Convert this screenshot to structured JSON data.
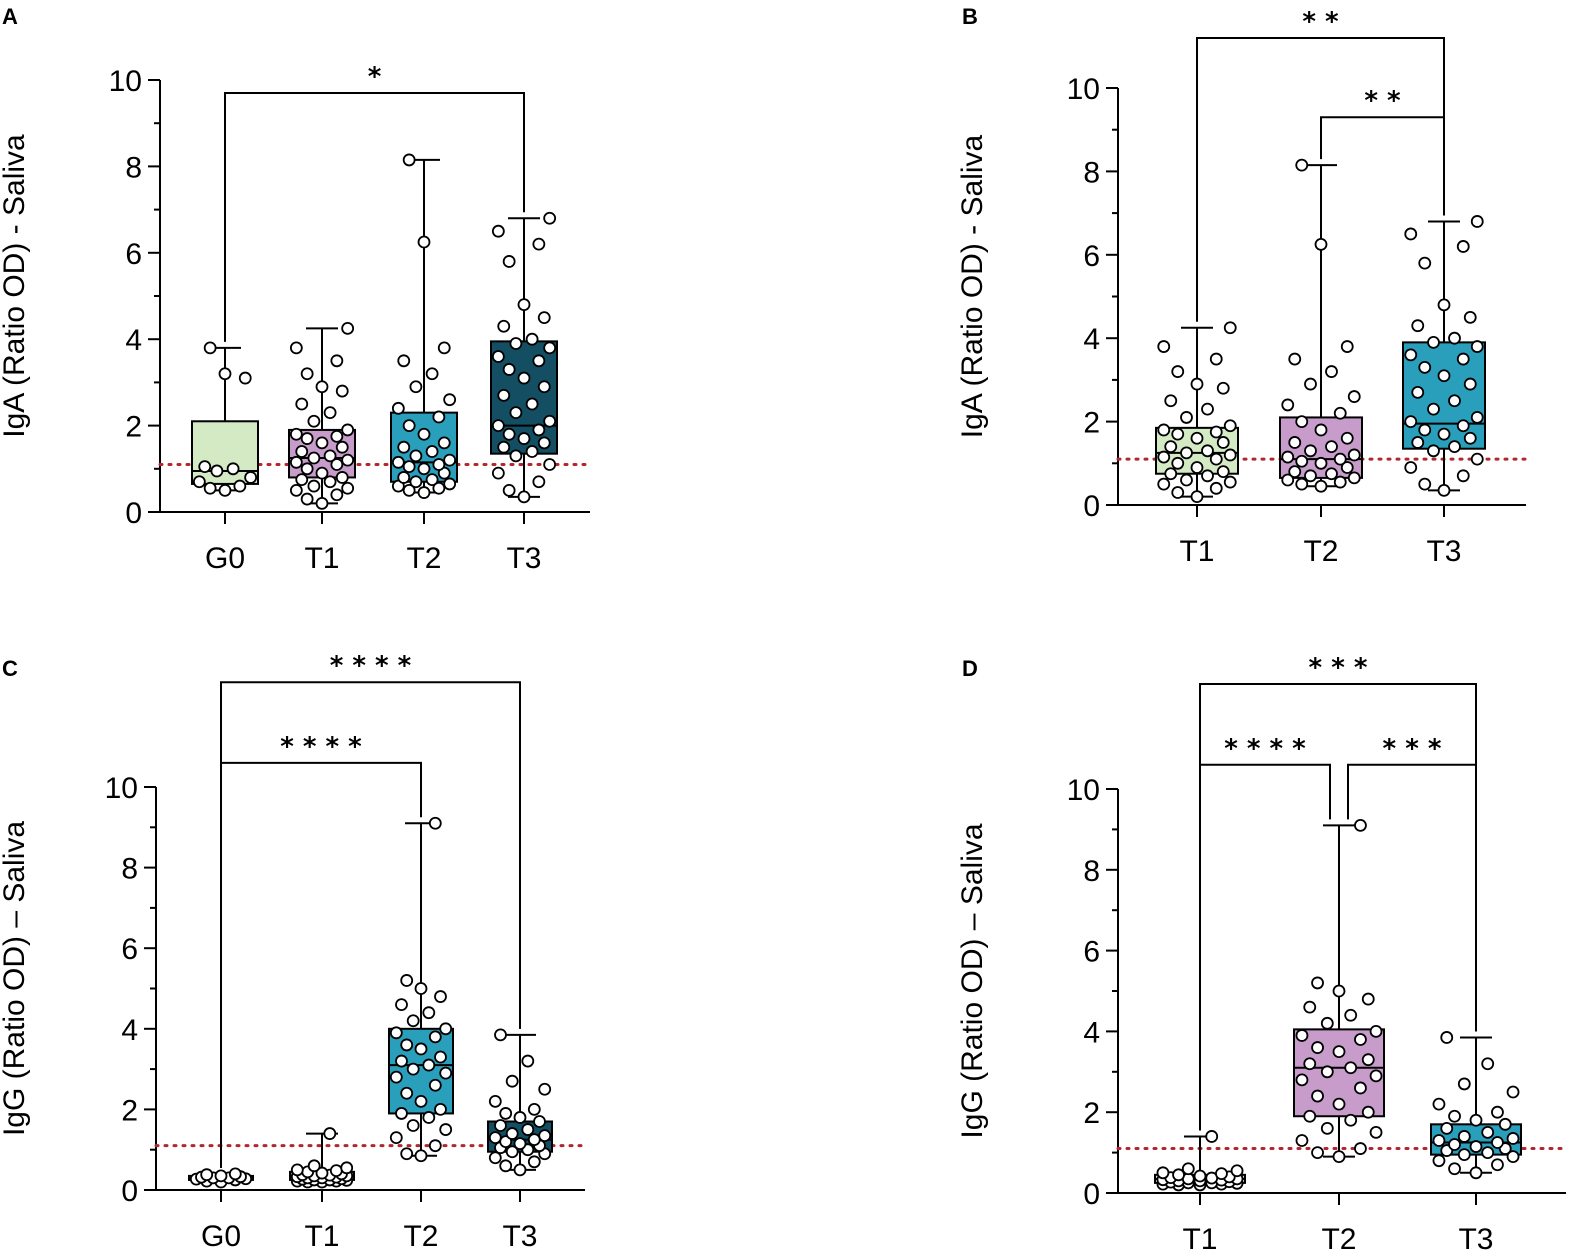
{
  "colors": {
    "light_green": "#d4eac4",
    "pink": "#c79ccb",
    "teal": "#2a9fbc",
    "dark_teal": "#134e63",
    "threshold": "#b3262e"
  },
  "chart_data": [
    {
      "panel": "A",
      "type": "box",
      "ylabel": "IgA (Ratio OD) - Saliva",
      "ylim": [
        0,
        10
      ],
      "yticks": [
        "0",
        "2",
        "4",
        "6",
        "8",
        "10"
      ],
      "threshold": 1.1,
      "categories": [
        "G0",
        "T1",
        "T2",
        "T3"
      ],
      "fills": [
        "light_green",
        "pink",
        "teal",
        "dark_teal"
      ],
      "boxes": [
        {
          "min": 0.5,
          "q1": 0.65,
          "median": 0.95,
          "q3": 2.1,
          "max": 3.8
        },
        {
          "min": 0.2,
          "q1": 0.8,
          "median": 1.25,
          "q3": 1.9,
          "max": 4.25
        },
        {
          "min": 0.45,
          "q1": 0.7,
          "median": 1.15,
          "q3": 2.3,
          "max": 8.15
        },
        {
          "min": 0.35,
          "q1": 1.35,
          "median": 2.0,
          "q3": 3.95,
          "max": 6.8
        }
      ],
      "points": [
        [
          0.5,
          0.55,
          0.6,
          0.7,
          0.8,
          0.95,
          1.0,
          1.05,
          3.1,
          3.2,
          3.8
        ],
        [
          0.2,
          0.3,
          0.4,
          0.5,
          0.55,
          0.6,
          0.7,
          0.75,
          0.8,
          0.9,
          1.0,
          1.1,
          1.15,
          1.2,
          1.25,
          1.3,
          1.4,
          1.5,
          1.6,
          1.7,
          1.75,
          1.8,
          1.9,
          2.1,
          2.3,
          2.5,
          2.8,
          2.9,
          3.2,
          3.5,
          3.8,
          4.25
        ],
        [
          0.45,
          0.5,
          0.55,
          0.6,
          0.65,
          0.7,
          0.75,
          0.8,
          0.9,
          1.0,
          1.05,
          1.1,
          1.15,
          1.2,
          1.3,
          1.4,
          1.5,
          1.6,
          1.8,
          2.0,
          2.2,
          2.4,
          2.6,
          2.9,
          3.2,
          3.5,
          3.8,
          6.25,
          8.15
        ],
        [
          0.35,
          0.5,
          0.7,
          0.9,
          1.1,
          1.3,
          1.4,
          1.5,
          1.6,
          1.7,
          1.8,
          1.9,
          2.0,
          2.1,
          2.3,
          2.5,
          2.7,
          2.9,
          3.1,
          3.3,
          3.5,
          3.6,
          3.8,
          3.9,
          4.0,
          4.3,
          4.5,
          4.8,
          5.8,
          6.2,
          6.5,
          6.8
        ]
      ],
      "brackets": [
        {
          "from": 0,
          "to": 3,
          "y": 9.7,
          "stars": "*"
        }
      ]
    },
    {
      "panel": "B",
      "type": "box",
      "ylabel": "IgA (Ratio OD) - Saliva",
      "ylim": [
        0,
        10
      ],
      "yticks": [
        "0",
        "2",
        "4",
        "6",
        "8",
        "10"
      ],
      "threshold": 1.1,
      "categories": [
        "T1",
        "T2",
        "T3"
      ],
      "fills": [
        "light_green",
        "pink",
        "teal"
      ],
      "boxes": [
        {
          "min": 0.2,
          "q1": 0.75,
          "median": 1.25,
          "q3": 1.85,
          "max": 4.25
        },
        {
          "min": 0.45,
          "q1": 0.65,
          "median": 1.1,
          "q3": 2.1,
          "max": 8.15
        },
        {
          "min": 0.35,
          "q1": 1.35,
          "median": 1.95,
          "q3": 3.9,
          "max": 6.8
        }
      ],
      "points": [
        [
          0.2,
          0.3,
          0.4,
          0.5,
          0.55,
          0.6,
          0.7,
          0.75,
          0.8,
          0.9,
          1.0,
          1.1,
          1.15,
          1.2,
          1.25,
          1.3,
          1.4,
          1.5,
          1.6,
          1.7,
          1.75,
          1.8,
          1.9,
          2.1,
          2.3,
          2.5,
          2.8,
          2.9,
          3.2,
          3.5,
          3.8,
          4.25
        ],
        [
          0.45,
          0.5,
          0.55,
          0.6,
          0.65,
          0.7,
          0.75,
          0.8,
          0.9,
          1.0,
          1.05,
          1.1,
          1.15,
          1.2,
          1.3,
          1.4,
          1.5,
          1.6,
          1.8,
          2.0,
          2.2,
          2.4,
          2.6,
          2.9,
          3.2,
          3.5,
          3.8,
          6.25,
          8.15
        ],
        [
          0.35,
          0.5,
          0.7,
          0.9,
          1.1,
          1.3,
          1.4,
          1.5,
          1.6,
          1.7,
          1.8,
          1.9,
          2.0,
          2.1,
          2.3,
          2.5,
          2.7,
          2.9,
          3.1,
          3.3,
          3.5,
          3.6,
          3.8,
          3.9,
          4.0,
          4.3,
          4.5,
          4.8,
          5.8,
          6.2,
          6.5,
          6.8
        ]
      ],
      "brackets": [
        {
          "from": 0,
          "to": 2,
          "y": 11.2,
          "stars": "* *"
        },
        {
          "from": 1,
          "to": 2,
          "y": 9.3,
          "stars": "* *"
        }
      ]
    },
    {
      "panel": "C",
      "type": "box",
      "ylabel": "IgG (Ratio OD) – Saliva",
      "ylim": [
        0,
        10
      ],
      "yticks": [
        "0",
        "2",
        "4",
        "6",
        "8",
        "10"
      ],
      "threshold": 1.1,
      "categories": [
        "G0",
        "T1",
        "T2",
        "T3"
      ],
      "fills": [
        "light_green",
        "pink",
        "teal",
        "dark_teal"
      ],
      "boxes": [
        {
          "min": 0.2,
          "q1": 0.25,
          "median": 0.3,
          "q3": 0.35,
          "max": 0.4
        },
        {
          "min": 0.2,
          "q1": 0.25,
          "median": 0.35,
          "q3": 0.45,
          "max": 1.4
        },
        {
          "min": 0.85,
          "q1": 1.9,
          "median": 3.1,
          "q3": 4.0,
          "max": 9.1
        },
        {
          "min": 0.5,
          "q1": 0.95,
          "median": 1.25,
          "q3": 1.7,
          "max": 3.85
        }
      ],
      "points": [
        [
          0.2,
          0.22,
          0.25,
          0.27,
          0.28,
          0.3,
          0.3,
          0.32,
          0.33,
          0.35,
          0.38,
          0.4
        ],
        [
          0.2,
          0.2,
          0.22,
          0.22,
          0.24,
          0.25,
          0.25,
          0.27,
          0.28,
          0.3,
          0.3,
          0.32,
          0.33,
          0.35,
          0.35,
          0.37,
          0.38,
          0.4,
          0.42,
          0.45,
          0.48,
          0.5,
          0.55,
          0.6,
          1.4
        ],
        [
          0.85,
          0.9,
          1.1,
          1.3,
          1.5,
          1.6,
          1.8,
          1.9,
          2.0,
          2.2,
          2.4,
          2.6,
          2.8,
          2.9,
          3.0,
          3.1,
          3.2,
          3.3,
          3.5,
          3.6,
          3.8,
          3.9,
          4.0,
          4.2,
          4.4,
          4.6,
          4.8,
          5.0,
          5.2,
          9.1
        ],
        [
          0.5,
          0.6,
          0.7,
          0.8,
          0.9,
          0.95,
          1.0,
          1.05,
          1.1,
          1.15,
          1.2,
          1.25,
          1.3,
          1.35,
          1.4,
          1.5,
          1.6,
          1.7,
          1.8,
          1.9,
          2.0,
          2.2,
          2.5,
          2.7,
          3.2,
          3.85
        ]
      ],
      "brackets": [
        {
          "from": 0,
          "to": 3,
          "y": 12.6,
          "stars": "* * * *"
        },
        {
          "from": 0,
          "to": 2,
          "y": 10.6,
          "stars": "* * * *"
        }
      ]
    },
    {
      "panel": "D",
      "type": "box",
      "ylabel": "IgG (Ratio OD) – Saliva",
      "ylim": [
        0,
        10
      ],
      "yticks": [
        "0",
        "2",
        "4",
        "6",
        "8",
        "10"
      ],
      "threshold": 1.1,
      "categories": [
        "T1",
        "T2",
        "T3"
      ],
      "fills": [
        "light_green",
        "pink",
        "teal"
      ],
      "boxes": [
        {
          "min": 0.2,
          "q1": 0.25,
          "median": 0.35,
          "q3": 0.45,
          "max": 1.4
        },
        {
          "min": 0.9,
          "q1": 1.9,
          "median": 3.1,
          "q3": 4.05,
          "max": 9.1
        },
        {
          "min": 0.5,
          "q1": 0.95,
          "median": 1.25,
          "q3": 1.7,
          "max": 3.85
        }
      ],
      "points": [
        [
          0.2,
          0.2,
          0.22,
          0.22,
          0.24,
          0.25,
          0.25,
          0.27,
          0.28,
          0.3,
          0.3,
          0.32,
          0.33,
          0.35,
          0.35,
          0.37,
          0.38,
          0.4,
          0.42,
          0.45,
          0.48,
          0.5,
          0.55,
          0.6,
          1.4
        ],
        [
          0.9,
          1.0,
          1.1,
          1.3,
          1.5,
          1.6,
          1.8,
          1.9,
          2.0,
          2.2,
          2.4,
          2.6,
          2.8,
          2.9,
          3.0,
          3.1,
          3.2,
          3.3,
          3.5,
          3.6,
          3.8,
          3.9,
          4.0,
          4.2,
          4.4,
          4.6,
          4.8,
          5.0,
          5.2,
          9.1
        ],
        [
          0.5,
          0.6,
          0.7,
          0.8,
          0.9,
          0.95,
          1.0,
          1.05,
          1.1,
          1.15,
          1.2,
          1.25,
          1.3,
          1.35,
          1.4,
          1.5,
          1.6,
          1.7,
          1.8,
          1.9,
          2.0,
          2.2,
          2.5,
          2.7,
          3.2,
          3.85
        ]
      ],
      "brackets": [
        {
          "from": 0,
          "to": 2,
          "y": 12.6,
          "stars": "* * *"
        },
        {
          "from": 0,
          "to": 1,
          "y": 10.6,
          "stars": "* * * *"
        },
        {
          "from": 1,
          "to": 2,
          "y": 10.6,
          "stars": "* * *"
        }
      ]
    }
  ]
}
